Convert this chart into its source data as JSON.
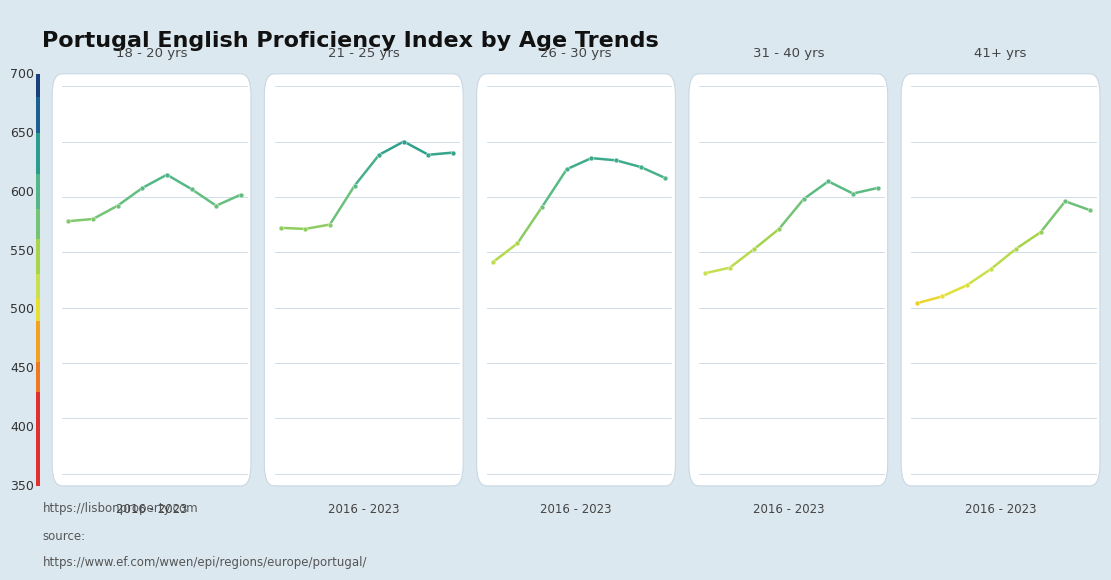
{
  "title": "Portugal English Proficiency Index by Age Trends",
  "background_color": "#dce8f0",
  "panel_color": "#ffffff",
  "age_groups": [
    "18 - 20 yrs",
    "21 - 25 yrs",
    "26 - 30 yrs",
    "31 - 40 yrs",
    "41+ yrs"
  ],
  "x_label": "2016 - 2023",
  "series": {
    "18 - 20 yrs": [
      578,
      580,
      592,
      608,
      620,
      607,
      592,
      602
    ],
    "21 - 25 yrs": [
      572,
      571,
      575,
      610,
      638,
      650,
      638,
      640
    ],
    "26 - 30 yrs": [
      541,
      558,
      591,
      625,
      635,
      633,
      627,
      617
    ],
    "31 - 40 yrs": [
      531,
      536,
      553,
      571,
      598,
      614,
      603,
      608
    ],
    "41+ yrs": [
      504,
      510,
      520,
      535,
      553,
      568,
      596,
      588
    ]
  },
  "ylim": [
    350,
    700
  ],
  "yticks": [
    350,
    400,
    450,
    500,
    550,
    600,
    650,
    700
  ],
  "grid_color": "#d0dde8",
  "panel_edge_color": "#c8d8e4",
  "colorbar_segments": [
    [
      680,
      700,
      "#1a3f7a"
    ],
    [
      650,
      680,
      "#1a6090"
    ],
    [
      615,
      650,
      "#2a9d8f"
    ],
    [
      585,
      615,
      "#52b788"
    ],
    [
      560,
      585,
      "#74c476"
    ],
    [
      530,
      560,
      "#a8d44a"
    ],
    [
      510,
      530,
      "#c8e050"
    ],
    [
      490,
      510,
      "#e8e030"
    ],
    [
      455,
      490,
      "#f4a020"
    ],
    [
      430,
      455,
      "#f07820"
    ],
    [
      350,
      430,
      "#e03030"
    ]
  ],
  "value_color_stops": [
    [
      350,
      "#e03030"
    ],
    [
      430,
      "#f07820"
    ],
    [
      490,
      "#f4a020"
    ],
    [
      510,
      "#e8e030"
    ],
    [
      530,
      "#c8e050"
    ],
    [
      560,
      "#a8d44a"
    ],
    [
      585,
      "#74c476"
    ],
    [
      615,
      "#52b788"
    ],
    [
      650,
      "#2a9d8f"
    ],
    [
      680,
      "#1a6090"
    ],
    [
      700,
      "#1a3f7a"
    ]
  ],
  "footer1": "https://lisbonproperty.com",
  "footer2": "source:",
  "footer3": "https://www.ef.com/wwen/epi/regions/europe/portugal/"
}
